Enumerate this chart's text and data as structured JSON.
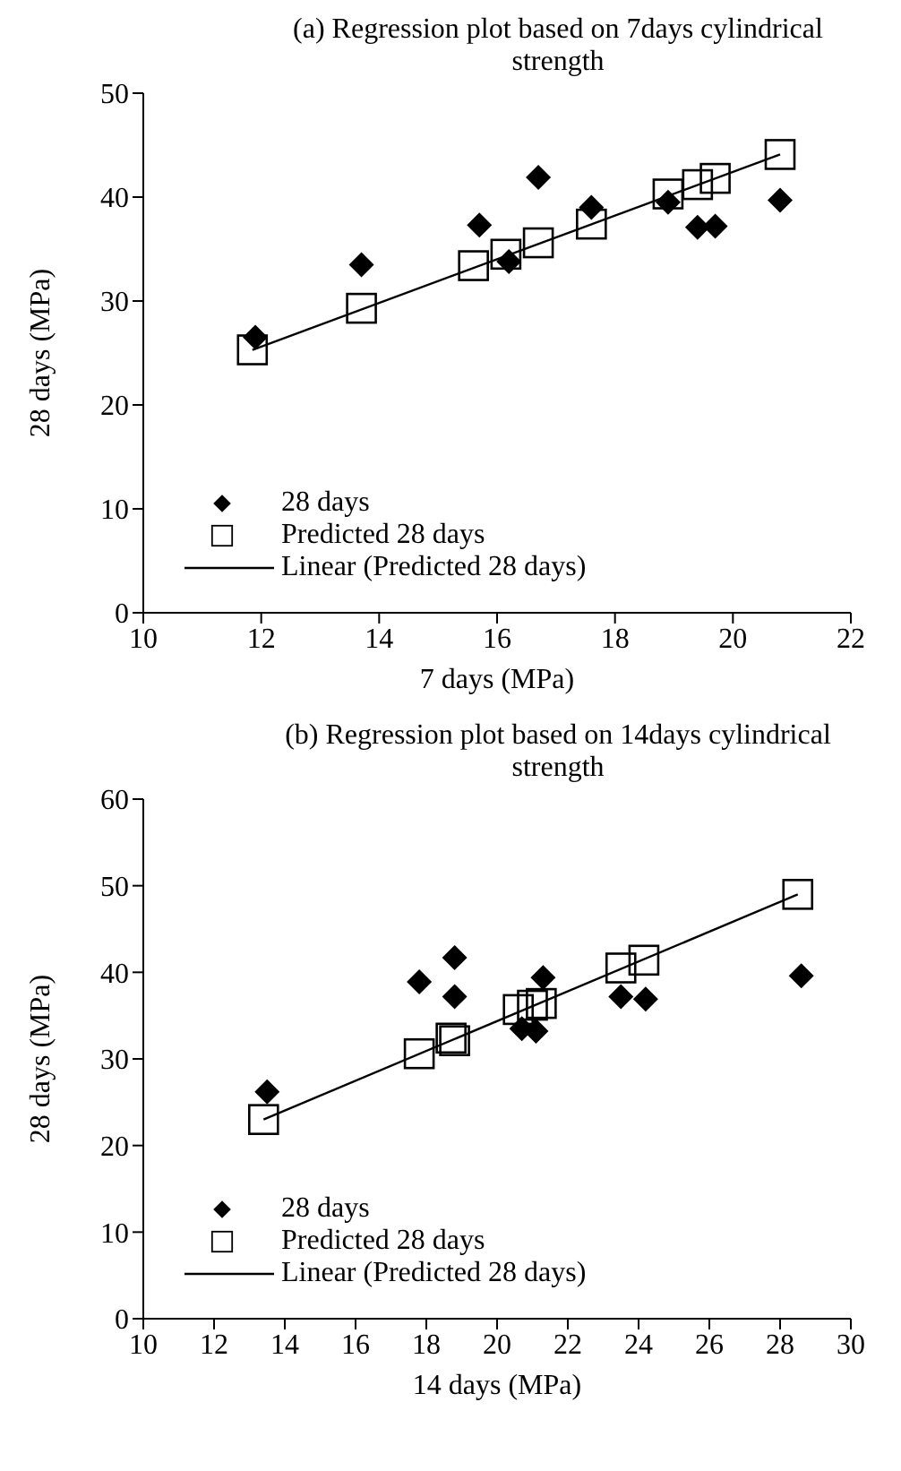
{
  "chart_data": [
    {
      "type": "scatter",
      "title": "(a) Regression plot based on 7days cylindrical strength",
      "xlabel": "7 days (MPa)",
      "ylabel": "28 days (MPa)",
      "xlim": [
        10,
        22
      ],
      "xticks": [
        10,
        12,
        14,
        16,
        18,
        20,
        22
      ],
      "ylim": [
        0,
        50
      ],
      "yticks": [
        0,
        10,
        20,
        30,
        40,
        50
      ],
      "grid": false,
      "legend": "bottom left",
      "series": [
        {
          "name": "28 days",
          "type": "scatter",
          "marker": "diamond",
          "color": "#000000",
          "x": [
            11.9,
            13.7,
            15.7,
            16.2,
            16.7,
            17.6,
            18.9,
            19.4,
            19.7,
            20.8
          ],
          "values": [
            26.5,
            33.5,
            37.3,
            33.8,
            41.9,
            39.0,
            39.5,
            37.1,
            37.2,
            39.7
          ]
        },
        {
          "name": "Predicted 28 days",
          "type": "scatter",
          "marker": "square",
          "color": "#000000",
          "x": [
            11.85,
            13.7,
            15.6,
            16.15,
            16.7,
            17.6,
            18.9,
            19.4,
            19.7,
            20.8
          ],
          "values": [
            25.3,
            29.3,
            33.4,
            34.5,
            35.6,
            37.4,
            40.3,
            41.2,
            41.8,
            44.1
          ]
        },
        {
          "name": "Linear (Predicted 28 days)",
          "type": "line",
          "marker": "none",
          "color": "#000000",
          "x": [
            11.85,
            20.8
          ],
          "values": [
            25.3,
            44.1
          ]
        }
      ]
    },
    {
      "type": "scatter",
      "title": "(b) Regression plot based on 14days cylindrical strength",
      "xlabel": "14 days (MPa)",
      "ylabel": "28 days (MPa)",
      "xlim": [
        10,
        30
      ],
      "xticks": [
        10,
        12,
        14,
        16,
        18,
        20,
        22,
        24,
        26,
        28,
        30
      ],
      "ylim": [
        0,
        60
      ],
      "yticks": [
        0,
        10,
        20,
        30,
        40,
        50,
        60
      ],
      "grid": false,
      "legend": "bottom left",
      "series": [
        {
          "name": "28 days",
          "type": "scatter",
          "marker": "diamond",
          "color": "#000000",
          "x": [
            13.5,
            17.8,
            18.8,
            18.8,
            20.7,
            21.1,
            21.3,
            23.5,
            24.2,
            28.6
          ],
          "values": [
            26.2,
            38.9,
            41.7,
            37.2,
            33.5,
            33.2,
            39.4,
            37.2,
            36.9,
            39.6
          ]
        },
        {
          "name": "Predicted 28 days",
          "type": "scatter",
          "marker": "square",
          "color": "#000000",
          "x": [
            13.4,
            17.8,
            18.7,
            18.8,
            20.6,
            21.0,
            21.25,
            23.5,
            24.15,
            28.5
          ],
          "values": [
            23.0,
            30.6,
            32.4,
            32.1,
            35.7,
            36.2,
            36.4,
            40.5,
            41.4,
            49.0
          ]
        },
        {
          "name": "Linear (Predicted 28 days)",
          "type": "line",
          "marker": "none",
          "color": "#000000",
          "x": [
            13.4,
            28.5
          ],
          "values": [
            23.0,
            49.0
          ]
        }
      ]
    }
  ]
}
